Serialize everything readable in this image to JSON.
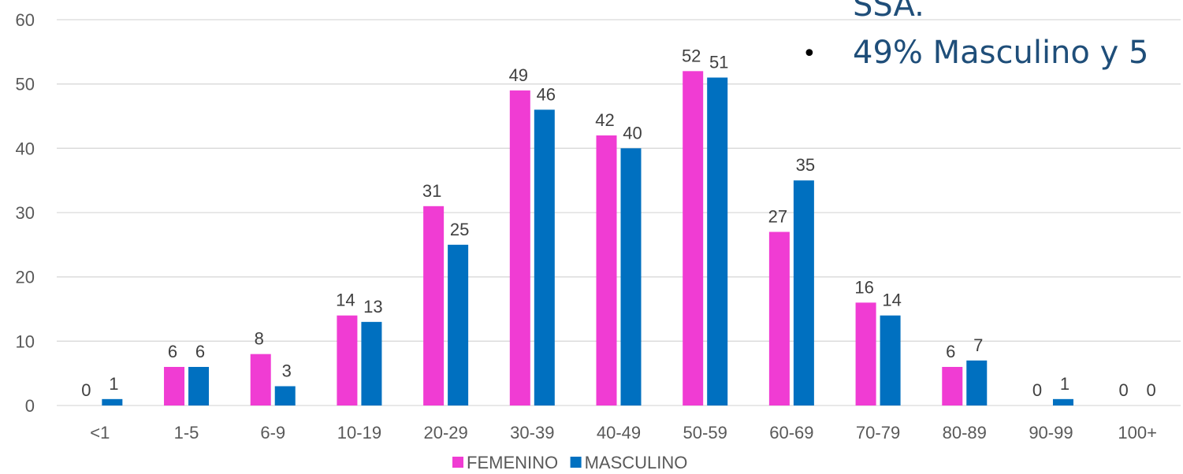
{
  "chart_data": {
    "type": "bar",
    "categories": [
      "<1",
      "1-5",
      "6-9",
      "10-19",
      "20-29",
      "30-39",
      "40-49",
      "50-59",
      "60-69",
      "70-79",
      "80-89",
      "90-99",
      "100+"
    ],
    "series": [
      {
        "name": "FEMENINO",
        "color": "#F03CD3",
        "values": [
          0,
          6,
          8,
          14,
          31,
          49,
          42,
          52,
          27,
          16,
          6,
          0,
          0
        ]
      },
      {
        "name": "MASCULINO",
        "color": "#0070C0",
        "values": [
          1,
          6,
          3,
          13,
          25,
          46,
          40,
          51,
          35,
          14,
          7,
          1,
          0
        ]
      }
    ],
    "yticks": [
      0,
      10,
      20,
      30,
      40,
      50,
      60
    ],
    "ylim": [
      0,
      60
    ],
    "grid": true,
    "legend_position": "bottom"
  },
  "overlay": {
    "line1": "SSA.",
    "bullet": "•",
    "line2": "49% Masculino y 5"
  }
}
